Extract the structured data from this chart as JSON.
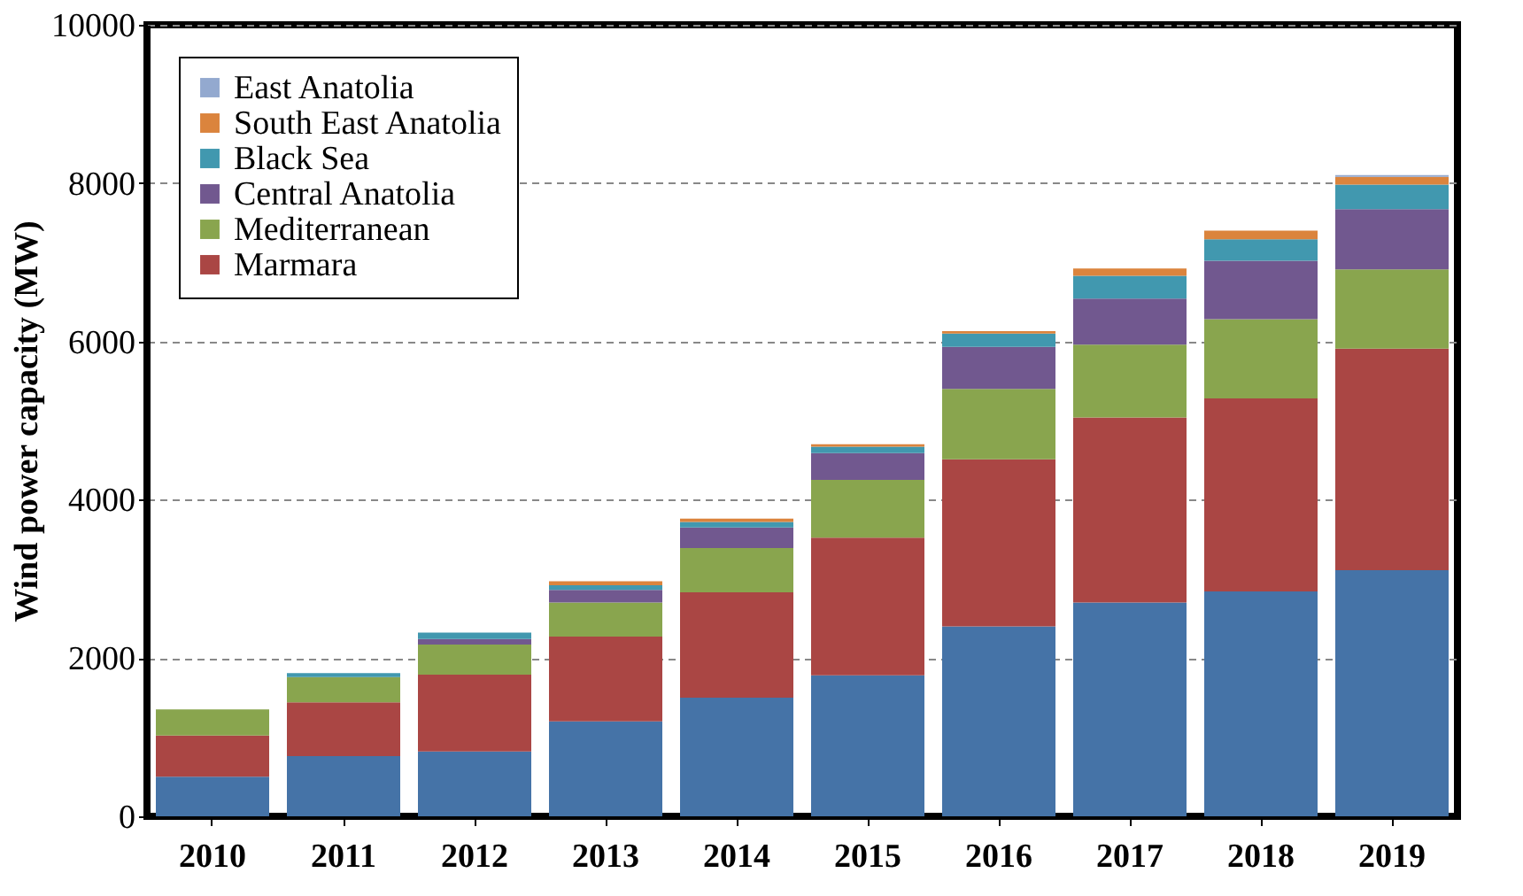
{
  "chart_data": {
    "type": "bar",
    "stacked": true,
    "ylabel": "Wind power capacity (MW)",
    "categories": [
      "2010",
      "2011",
      "2012",
      "2013",
      "2014",
      "2015",
      "2016",
      "2017",
      "2018",
      "2019"
    ],
    "series": [
      {
        "color": "#4573a7",
        "values": [
          500,
          760,
          820,
          1200,
          1500,
          1780,
          2400,
          2700,
          2840,
          3110
        ]
      },
      {
        "name": "Marmara",
        "color": "#aa4644",
        "values": [
          520,
          680,
          970,
          1070,
          1330,
          1740,
          2110,
          2340,
          2440,
          2800
        ]
      },
      {
        "name": "Mediterranean",
        "color": "#89a54e",
        "values": [
          330,
          320,
          380,
          430,
          560,
          730,
          890,
          920,
          1000,
          1000
        ]
      },
      {
        "name": "Central Anatolia",
        "color": "#71588f",
        "values": [
          0,
          0,
          70,
          160,
          260,
          340,
          530,
          580,
          740,
          760
        ]
      },
      {
        "name": "Black Sea",
        "color": "#4198af",
        "values": [
          0,
          50,
          80,
          60,
          70,
          80,
          170,
          290,
          270,
          310
        ]
      },
      {
        "name": "South East Anatolia",
        "color": "#db843d",
        "values": [
          0,
          0,
          0,
          50,
          40,
          30,
          30,
          90,
          110,
          100
        ]
      },
      {
        "name": "East Anatolia",
        "color": "#93a9cf",
        "values": [
          0,
          0,
          0,
          0,
          0,
          0,
          0,
          0,
          0,
          20
        ]
      }
    ],
    "ylim": [
      0,
      10000
    ],
    "yticks": [
      0,
      2000,
      4000,
      6000,
      8000,
      10000
    ],
    "grid": "y",
    "legend": "top left"
  }
}
